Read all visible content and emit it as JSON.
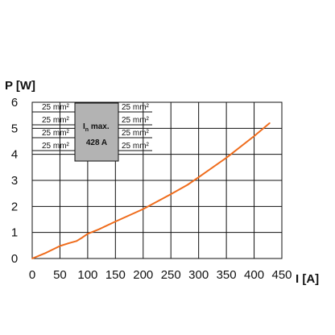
{
  "chart_data": {
    "type": "line",
    "title": "",
    "xlabel": "I [A]",
    "ylabel": "P [W]",
    "xlim": [
      0,
      450
    ],
    "ylim": [
      0,
      6
    ],
    "x_ticks": [
      "0",
      "50",
      "100",
      "150",
      "200",
      "250",
      "300",
      "350",
      "400",
      "450"
    ],
    "y_ticks": [
      "0",
      "1",
      "2",
      "3",
      "4",
      "5",
      "6"
    ],
    "grid": true,
    "series": [
      {
        "name": "",
        "color": "#ef6c1c",
        "x": [
          0,
          25,
          50,
          65,
          80,
          90,
          100,
          120,
          150,
          200,
          250,
          280,
          300,
          350,
          400,
          428
        ],
        "y": [
          0,
          0.22,
          0.48,
          0.58,
          0.67,
          0.8,
          0.95,
          1.12,
          1.42,
          1.9,
          2.47,
          2.83,
          3.12,
          3.87,
          4.7,
          5.2
        ]
      }
    ],
    "inset": {
      "fill": "#b3b3b3",
      "line1_main": "I",
      "line1_sub": "n",
      "line1_rest": " max.",
      "line2": "428 A",
      "left_labels": [
        "25 mm²",
        "25 mm²",
        "25 mm²",
        "25 mm²"
      ],
      "right_labels": [
        "25 mm²",
        "25 mm²",
        "25 mm²",
        "25 mm²"
      ]
    }
  }
}
